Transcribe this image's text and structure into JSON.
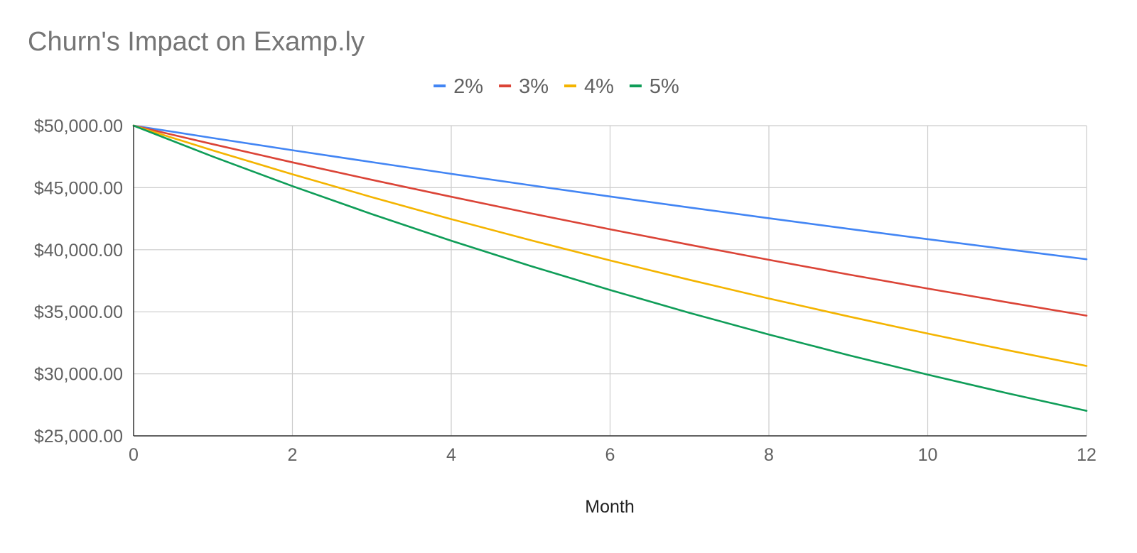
{
  "chart_data": {
    "type": "line",
    "title": "Churn's Impact on Examp.ly",
    "xlabel": "Month",
    "ylabel": "",
    "x": [
      0,
      1,
      2,
      3,
      4,
      5,
      6,
      7,
      8,
      9,
      10,
      11,
      12
    ],
    "xlim": [
      0,
      12
    ],
    "ylim": [
      25000,
      50000
    ],
    "x_ticks": [
      0,
      2,
      4,
      6,
      8,
      10,
      12
    ],
    "x_tick_labels": [
      "0",
      "2",
      "4",
      "6",
      "8",
      "10",
      "12"
    ],
    "y_ticks": [
      25000,
      30000,
      35000,
      40000,
      45000,
      50000
    ],
    "y_tick_labels": [
      "$25,000.00",
      "$30,000.00",
      "$35,000.00",
      "$40,000.00",
      "$45,000.00",
      "$50,000.00"
    ],
    "grid": true,
    "legend_position": "top-center",
    "series": [
      {
        "name": "2%",
        "color": "#4285F4",
        "values": [
          50000,
          49000,
          48020,
          47060,
          46118,
          45196,
          44292,
          43406,
          42538,
          41687,
          40854,
          40037,
          39236
        ]
      },
      {
        "name": "3%",
        "color": "#DB4437",
        "values": [
          50000,
          48500,
          47045,
          45634,
          44265,
          42937,
          41649,
          40399,
          39187,
          38012,
          36871,
          35765,
          34692
        ]
      },
      {
        "name": "4%",
        "color": "#F4B400",
        "values": [
          50000,
          48000,
          46080,
          44237,
          42467,
          40769,
          39138,
          37573,
          36070,
          34627,
          33242,
          31912,
          30636
        ]
      },
      {
        "name": "5%",
        "color": "#0F9D58",
        "values": [
          50000,
          47500,
          45125,
          42869,
          40725,
          38689,
          36755,
          34917,
          33171,
          31512,
          29937,
          28440,
          27018
        ]
      }
    ]
  }
}
